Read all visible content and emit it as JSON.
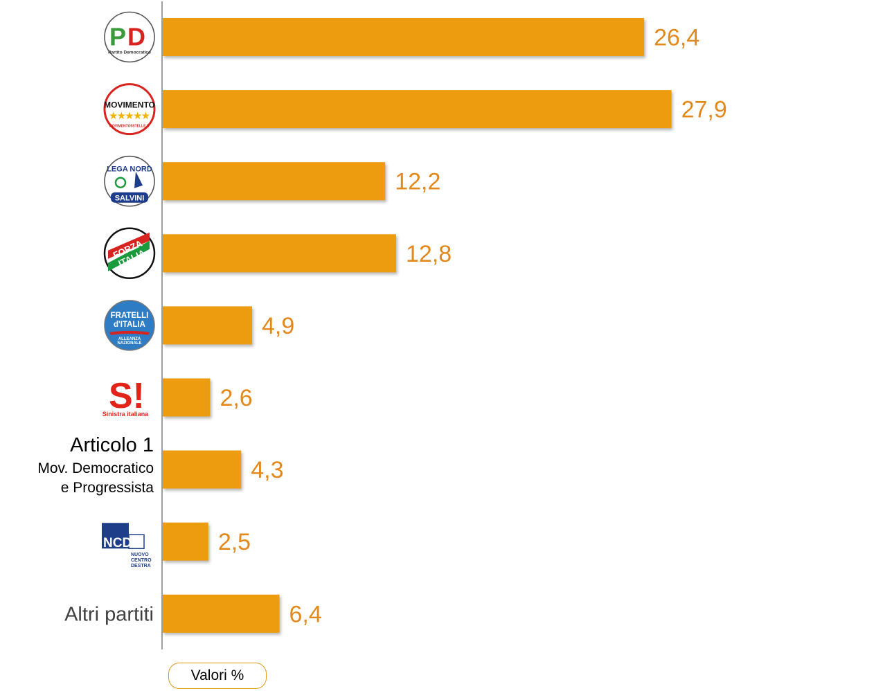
{
  "chart_data": {
    "type": "bar",
    "orientation": "horizontal",
    "bar_color": "#ec9c0e",
    "label_color": "#e3891b",
    "categories": [
      {
        "name": "PD Partito Democratico",
        "logo": "pd-logo",
        "logo_text": [
          "PD",
          "Partito Democratico"
        ]
      },
      {
        "name": "Movimento 5 Stelle",
        "logo": "m5s-logo",
        "logo_text": [
          "MOVIMENTO",
          "★★★★★",
          "MOVIMENTO5STELLE.IT"
        ]
      },
      {
        "name": "Lega Nord Salvini",
        "logo": "lega-logo",
        "logo_text": [
          "LEGA NORD",
          "SALVINI"
        ]
      },
      {
        "name": "Forza Italia",
        "logo": "forza-italia-logo",
        "logo_text": [
          "FORZA",
          "ITALIA"
        ]
      },
      {
        "name": "Fratelli d'Italia",
        "logo": "fdi-logo",
        "logo_text": [
          "FRATELLI",
          "d'ITALIA",
          "ALLEANZA",
          "NAZIONALE"
        ]
      },
      {
        "name": "Sinistra italiana",
        "logo": "si-logo",
        "logo_text": [
          "S!",
          "Sinistra italiana"
        ]
      },
      {
        "name": "Articolo 1",
        "text_lines": [
          "Articolo 1",
          "Mov. Democratico",
          "e Progressista"
        ]
      },
      {
        "name": "NCD",
        "logo": "ncd-logo",
        "logo_text": [
          "NCD",
          "NUOVO",
          "CENTRO",
          "DESTRA"
        ]
      },
      {
        "name": "Altri partiti",
        "text_lines": [
          "Altri partiti"
        ]
      }
    ],
    "values": [
      26.4,
      27.9,
      12.2,
      12.8,
      4.9,
      2.6,
      4.3,
      2.5,
      6.4
    ],
    "value_labels": [
      "26,4",
      "27,9",
      "12,2",
      "12,8",
      "4,9",
      "2,6",
      "4,3",
      "2,5",
      "6,4"
    ],
    "xlim": [
      0,
      40
    ],
    "legend": "bottom-left",
    "grid": false
  },
  "legend": {
    "label": "Valori %"
  }
}
